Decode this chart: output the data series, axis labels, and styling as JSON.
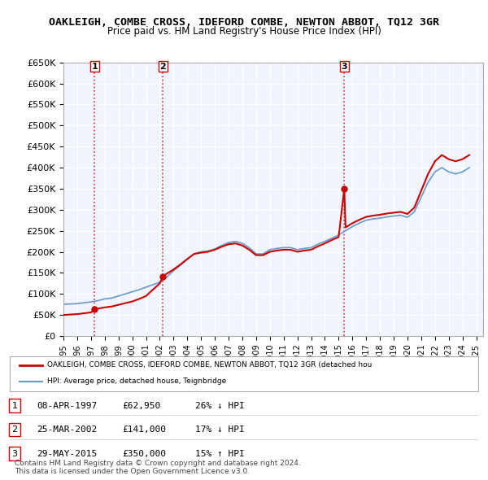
{
  "title": "OAKLEIGH, COMBE CROSS, IDEFORD COMBE, NEWTON ABBOT, TQ12 3GR",
  "subtitle": "Price paid vs. HM Land Registry's House Price Index (HPI)",
  "ylim": [
    0,
    650000
  ],
  "yticks": [
    0,
    50000,
    100000,
    150000,
    200000,
    250000,
    300000,
    350000,
    400000,
    450000,
    500000,
    550000,
    600000,
    650000
  ],
  "xlim_start": 1995.0,
  "xlim_end": 2025.5,
  "background_color": "#ffffff",
  "plot_bg_color": "#f0f4ff",
  "grid_color": "#ffffff",
  "sale_points": [
    {
      "year": 1997.27,
      "price": 62950,
      "label": "1"
    },
    {
      "year": 2002.23,
      "price": 141000,
      "label": "2"
    },
    {
      "year": 2015.41,
      "price": 350000,
      "label": "3"
    }
  ],
  "vline_color": "#cc0000",
  "vline_style": ":",
  "sale_line_color": "#cc0000",
  "hpi_line_color": "#6699cc",
  "legend_sale_label": "OAKLEIGH, COMBE CROSS, IDEFORD COMBE, NEWTON ABBOT, TQ12 3GR (detached hou",
  "legend_hpi_label": "HPI: Average price, detached house, Teignbridge",
  "table_rows": [
    {
      "num": "1",
      "date": "08-APR-1997",
      "price": "£62,950",
      "change": "26% ↓ HPI"
    },
    {
      "num": "2",
      "date": "25-MAR-2002",
      "price": "£141,000",
      "change": "17% ↓ HPI"
    },
    {
      "num": "3",
      "date": "29-MAY-2015",
      "price": "£350,000",
      "change": "15% ↑ HPI"
    }
  ],
  "footer": "Contains HM Land Registry data © Crown copyright and database right 2024.\nThis data is licensed under the Open Government Licence v3.0.",
  "hpi_data_x": [
    1995.0,
    1995.5,
    1996.0,
    1996.5,
    1997.0,
    1997.5,
    1998.0,
    1998.5,
    1999.0,
    1999.5,
    2000.0,
    2000.5,
    2001.0,
    2001.5,
    2002.0,
    2002.5,
    2003.0,
    2003.5,
    2004.0,
    2004.5,
    2005.0,
    2005.5,
    2006.0,
    2006.5,
    2007.0,
    2007.5,
    2008.0,
    2008.5,
    2009.0,
    2009.5,
    2010.0,
    2010.5,
    2011.0,
    2011.5,
    2012.0,
    2012.5,
    2013.0,
    2013.5,
    2014.0,
    2014.5,
    2015.0,
    2015.5,
    2016.0,
    2016.5,
    2017.0,
    2017.5,
    2018.0,
    2018.5,
    2019.0,
    2019.5,
    2020.0,
    2020.5,
    2021.0,
    2021.5,
    2022.0,
    2022.5,
    2023.0,
    2023.5,
    2024.0,
    2024.5
  ],
  "hpi_data_y": [
    75000,
    76000,
    77000,
    79000,
    81000,
    84000,
    88000,
    90000,
    95000,
    100000,
    105000,
    110000,
    116000,
    122000,
    128000,
    140000,
    155000,
    168000,
    182000,
    195000,
    200000,
    202000,
    207000,
    215000,
    222000,
    225000,
    220000,
    210000,
    195000,
    195000,
    205000,
    208000,
    210000,
    210000,
    205000,
    208000,
    210000,
    218000,
    225000,
    232000,
    240000,
    250000,
    260000,
    268000,
    275000,
    278000,
    280000,
    283000,
    285000,
    287000,
    282000,
    295000,
    330000,
    365000,
    390000,
    400000,
    390000,
    385000,
    390000,
    400000
  ],
  "sale_data_x": [
    1995.0,
    1995.5,
    1996.0,
    1996.5,
    1997.0,
    1997.27,
    1997.5,
    1998.0,
    1998.5,
    1999.0,
    1999.5,
    2000.0,
    2000.5,
    2001.0,
    2001.5,
    2002.0,
    2002.23,
    2002.5,
    2003.0,
    2003.5,
    2004.0,
    2004.5,
    2005.0,
    2005.5,
    2006.0,
    2006.5,
    2007.0,
    2007.5,
    2008.0,
    2008.5,
    2009.0,
    2009.5,
    2010.0,
    2010.5,
    2011.0,
    2011.5,
    2012.0,
    2012.5,
    2013.0,
    2013.5,
    2014.0,
    2014.5,
    2015.0,
    2015.41,
    2015.5,
    2016.0,
    2016.5,
    2017.0,
    2017.5,
    2018.0,
    2018.5,
    2019.0,
    2019.5,
    2020.0,
    2020.5,
    2021.0,
    2021.5,
    2022.0,
    2022.5,
    2023.0,
    2023.5,
    2024.0,
    2024.5
  ],
  "sale_data_y": [
    50000,
    51000,
    52000,
    54000,
    56000,
    62950,
    65000,
    68000,
    70000,
    74000,
    78000,
    82000,
    88000,
    95000,
    110000,
    125000,
    141000,
    148000,
    158000,
    170000,
    183000,
    195000,
    198000,
    200000,
    205000,
    212000,
    218000,
    220000,
    215000,
    205000,
    192000,
    192000,
    200000,
    203000,
    205000,
    205000,
    200000,
    203000,
    205000,
    213000,
    220000,
    228000,
    235000,
    350000,
    258000,
    268000,
    276000,
    283000,
    286000,
    288000,
    291000,
    293000,
    295000,
    290000,
    305000,
    345000,
    385000,
    415000,
    430000,
    420000,
    415000,
    420000,
    430000
  ]
}
